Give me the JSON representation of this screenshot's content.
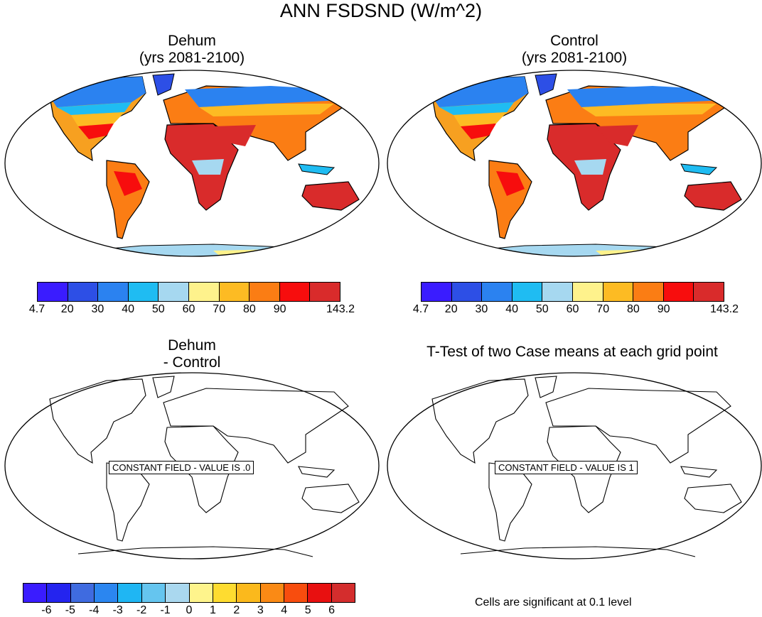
{
  "main_title": "ANN FSDSND (W/m^2)",
  "panels": {
    "top_left": {
      "title_line1": "Dehum",
      "title_line2": "(yrs 2081-2100)"
    },
    "top_right": {
      "title_line1": "Control",
      "title_line2": "(yrs 2081-2100)"
    },
    "bottom_left": {
      "title_line1": "Dehum",
      "title_line2": "- Control",
      "field_label": "CONSTANT FIELD - VALUE IS .0"
    },
    "bottom_right": {
      "title": "T-Test of two Case means at each grid point",
      "field_label": "CONSTANT FIELD - VALUE IS 1",
      "note": "Cells are significant at 0.1 level"
    }
  },
  "colorbar_abs": {
    "colors": [
      "#3a1cff",
      "#2d4fe6",
      "#2b82f0",
      "#1fbcf2",
      "#a6d8f0",
      "#fef28c",
      "#fdbb23",
      "#fb7d14",
      "#f70d0d",
      "#d92b2b"
    ],
    "labels": [
      "4.7",
      "20",
      "30",
      "40",
      "50",
      "60",
      "70",
      "80",
      "90",
      "143.2"
    ]
  },
  "colorbar_diff": {
    "colors": [
      "#3a1cff",
      "#2424ef",
      "#3f6be0",
      "#2b86f0",
      "#1fb6f3",
      "#65c5ef",
      "#aad8ef",
      "#fef48c",
      "#fedc30",
      "#fbb91c",
      "#fa8a15",
      "#f84d0e",
      "#e81010",
      "#d42d2d"
    ],
    "labels": [
      "-6",
      "-5",
      "-4",
      "-3",
      "-2",
      "-1",
      "0",
      "1",
      "2",
      "3",
      "4",
      "5",
      "6"
    ]
  }
}
